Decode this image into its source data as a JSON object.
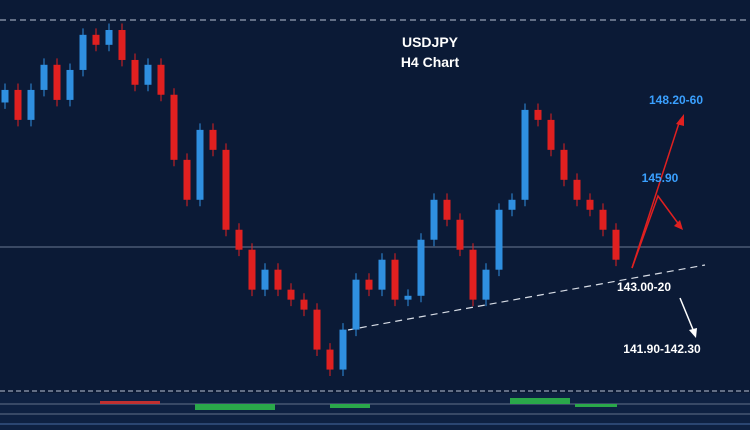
{
  "chart_data": {
    "type": "candlestick",
    "title": "USDJPY",
    "subtitle": "H4 Chart",
    "annotations": [
      "148.20-60",
      "145.90",
      "143.00-20",
      "141.90-142.30"
    ],
    "ylim": [
      139.5,
      151
    ],
    "up_color": "#2f8fe0",
    "down_color": "#e02020",
    "open": [
      148.3,
      148.69,
      147.76,
      148.69,
      149.47,
      148.38,
      149.31,
      150.4,
      150.09,
      150.55,
      149.62,
      148.85,
      149.47,
      148.54,
      146.52,
      145.28,
      147.45,
      146.83,
      144.35,
      143.73,
      142.49,
      143.11,
      142.49,
      142.18,
      141.87,
      140.63,
      140.01,
      141.25,
      142.8,
      142.49,
      143.42,
      142.18,
      142.3,
      144.04,
      145.28,
      144.66,
      143.73,
      142.18,
      143.11,
      144.97,
      145.28,
      148.07,
      147.76,
      146.83,
      145.9,
      145.28,
      144.97,
      144.35
    ],
    "high": [
      148.89,
      148.89,
      148.89,
      149.67,
      149.67,
      149.51,
      150.6,
      150.6,
      150.75,
      150.75,
      149.82,
      149.67,
      149.67,
      148.74,
      146.72,
      147.65,
      147.65,
      147.03,
      144.55,
      143.93,
      143.31,
      143.31,
      142.69,
      142.38,
      142.07,
      140.83,
      141.45,
      143.0,
      143.0,
      143.62,
      143.62,
      142.5,
      144.24,
      145.48,
      145.48,
      144.86,
      143.93,
      143.31,
      145.17,
      145.48,
      148.27,
      148.27,
      147.96,
      147.03,
      146.1,
      145.48,
      145.17,
      144.55
    ],
    "low": [
      148.1,
      147.56,
      147.56,
      148.49,
      148.18,
      148.18,
      149.11,
      149.89,
      149.89,
      149.42,
      148.65,
      148.65,
      148.34,
      146.32,
      145.08,
      145.08,
      146.63,
      144.15,
      143.53,
      142.29,
      142.29,
      142.29,
      141.98,
      141.67,
      140.43,
      139.81,
      139.81,
      141.05,
      142.29,
      142.29,
      141.98,
      141.98,
      142.1,
      143.84,
      144.46,
      143.53,
      141.98,
      141.98,
      142.91,
      144.77,
      145.08,
      147.56,
      146.63,
      145.7,
      145.08,
      144.77,
      144.15,
      143.22
    ],
    "close": [
      148.69,
      147.76,
      148.69,
      149.47,
      148.38,
      149.31,
      150.4,
      150.09,
      150.55,
      149.62,
      148.85,
      149.47,
      148.54,
      146.52,
      145.28,
      147.45,
      146.83,
      144.35,
      143.73,
      142.49,
      143.11,
      142.49,
      142.18,
      141.87,
      140.63,
      140.01,
      141.25,
      142.8,
      142.49,
      143.42,
      142.18,
      142.3,
      144.04,
      145.28,
      144.66,
      143.73,
      142.18,
      143.11,
      144.97,
      145.28,
      148.07,
      147.76,
      146.83,
      145.9,
      145.28,
      144.97,
      144.35,
      143.42
    ]
  }
}
